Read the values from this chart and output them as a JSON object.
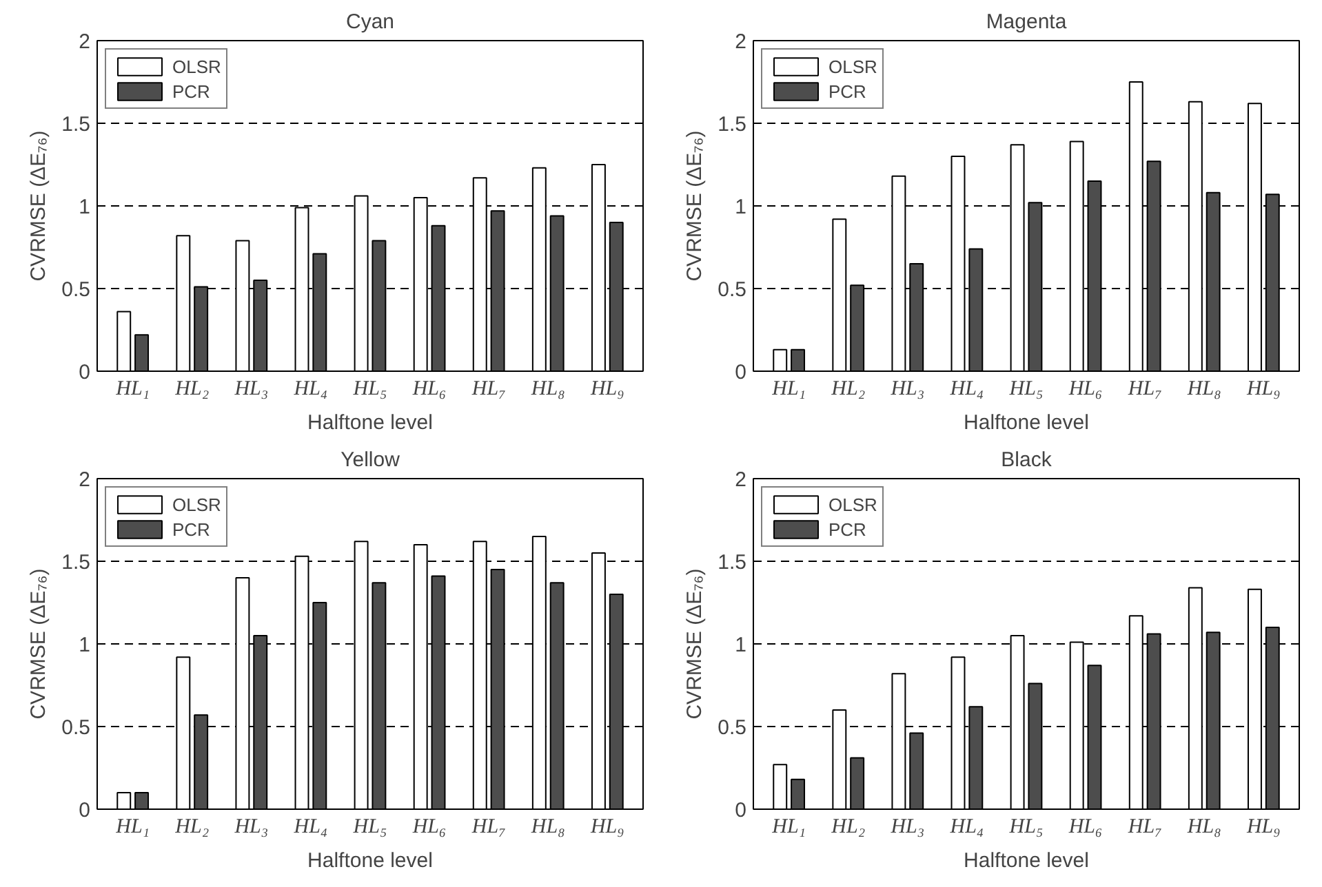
{
  "chart_data": [
    {
      "type": "bar",
      "title": "Cyan",
      "xlabel": "Halftone level",
      "ylabel": "CVRMSE (ΔE₇₆)",
      "categories": [
        "HL₁",
        "HL₂",
        "HL₃",
        "HL₄",
        "HL₅",
        "HL₆",
        "HL₇",
        "HL₈",
        "HL₉"
      ],
      "ylim": [
        0,
        2
      ],
      "yticks": [
        0,
        0.5,
        1,
        1.5,
        2
      ],
      "grid": "y",
      "legend": "top left",
      "series": [
        {
          "name": "OLSR",
          "color": "#ffffff",
          "values": [
            0.36,
            0.82,
            0.79,
            0.99,
            1.06,
            1.05,
            1.17,
            1.23,
            1.25
          ]
        },
        {
          "name": "PCR",
          "color": "#4d4d4d",
          "values": [
            0.22,
            0.51,
            0.55,
            0.71,
            0.79,
            0.88,
            0.97,
            0.94,
            0.9
          ]
        }
      ]
    },
    {
      "type": "bar",
      "title": "Magenta",
      "xlabel": "Halftone level",
      "ylabel": "CVRMSE (ΔE₇₆)",
      "categories": [
        "HL₁",
        "HL₂",
        "HL₃",
        "HL₄",
        "HL₅",
        "HL₆",
        "HL₇",
        "HL₈",
        "HL₉"
      ],
      "ylim": [
        0,
        2
      ],
      "yticks": [
        0,
        0.5,
        1,
        1.5,
        2
      ],
      "grid": "y",
      "legend": "top left",
      "series": [
        {
          "name": "OLSR",
          "color": "#ffffff",
          "values": [
            0.13,
            0.92,
            1.18,
            1.3,
            1.37,
            1.39,
            1.75,
            1.63,
            1.62
          ]
        },
        {
          "name": "PCR",
          "color": "#4d4d4d",
          "values": [
            0.13,
            0.52,
            0.65,
            0.74,
            1.02,
            1.15,
            1.27,
            1.08,
            1.07
          ]
        }
      ]
    },
    {
      "type": "bar",
      "title": "Yellow",
      "xlabel": "Halftone level",
      "ylabel": "CVRMSE (ΔE₇₆)",
      "categories": [
        "HL₁",
        "HL₂",
        "HL₃",
        "HL₄",
        "HL₅",
        "HL₆",
        "HL₇",
        "HL₈",
        "HL₉"
      ],
      "ylim": [
        0,
        2
      ],
      "yticks": [
        0,
        0.5,
        1,
        1.5,
        2
      ],
      "grid": "y",
      "legend": "top left",
      "series": [
        {
          "name": "OLSR",
          "color": "#ffffff",
          "values": [
            0.1,
            0.92,
            1.4,
            1.53,
            1.62,
            1.6,
            1.62,
            1.65,
            1.55
          ]
        },
        {
          "name": "PCR",
          "color": "#4d4d4d",
          "values": [
            0.1,
            0.57,
            1.05,
            1.25,
            1.37,
            1.41,
            1.45,
            1.37,
            1.3
          ]
        }
      ]
    },
    {
      "type": "bar",
      "title": "Black",
      "xlabel": "Halftone level",
      "ylabel": "CVRMSE (ΔE₇₆)",
      "categories": [
        "HL₁",
        "HL₂",
        "HL₃",
        "HL₄",
        "HL₅",
        "HL₆",
        "HL₇",
        "HL₈",
        "HL₉"
      ],
      "ylim": [
        0,
        2
      ],
      "yticks": [
        0,
        0.5,
        1,
        1.5,
        2
      ],
      "grid": "y",
      "legend": "top left",
      "series": [
        {
          "name": "OLSR",
          "color": "#ffffff",
          "values": [
            0.27,
            0.6,
            0.82,
            0.92,
            1.05,
            1.01,
            1.17,
            1.34,
            1.33
          ]
        },
        {
          "name": "PCR",
          "color": "#4d4d4d",
          "values": [
            0.18,
            0.31,
            0.46,
            0.62,
            0.76,
            0.87,
            1.06,
            1.07,
            1.1
          ]
        }
      ]
    }
  ]
}
